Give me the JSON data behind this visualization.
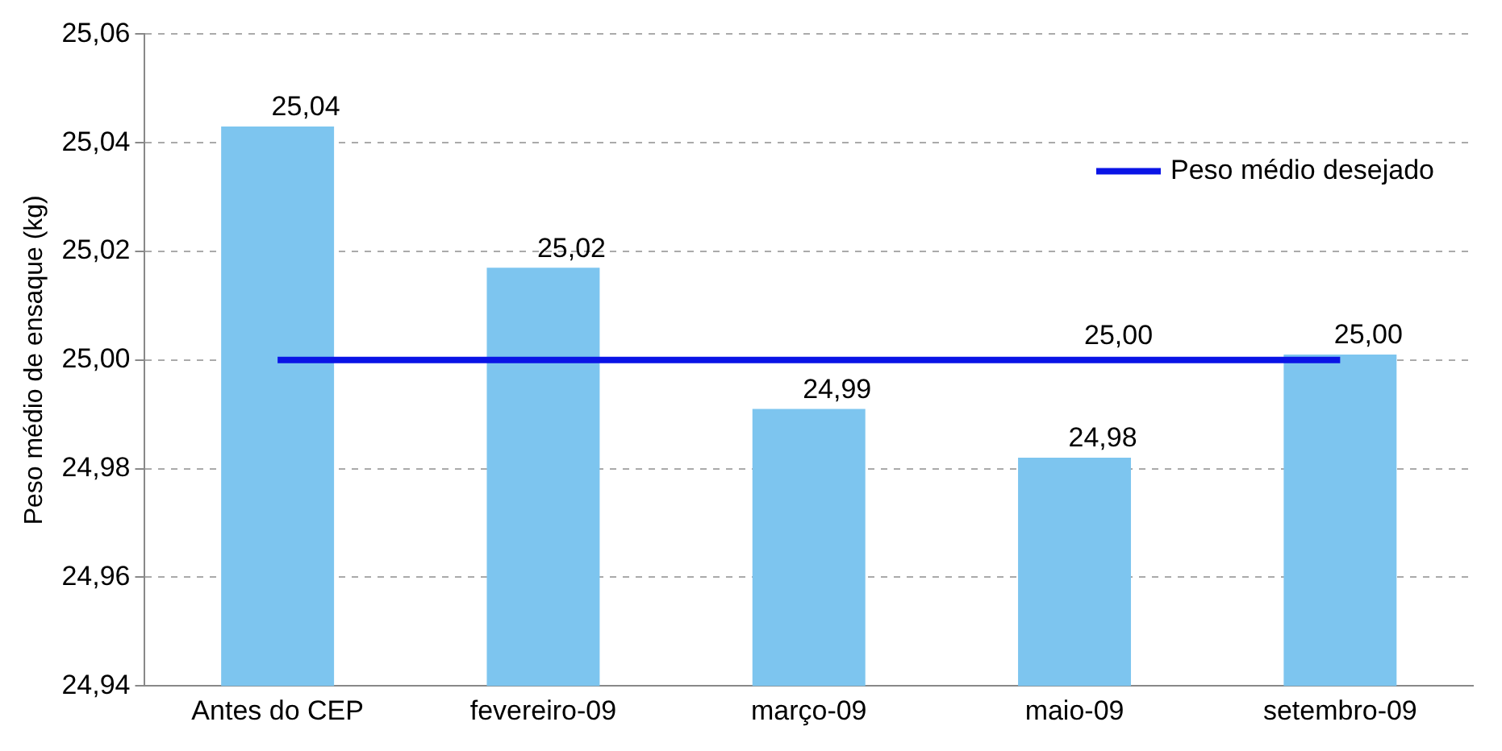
{
  "chart_data": {
    "type": "bar",
    "ylabel": "Peso médio de ensaque (kg)",
    "categories": [
      "Antes do CEP",
      "fevereiro-09",
      "março-09",
      "maio-09",
      "setembro-09"
    ],
    "series": [
      {
        "color": "#7dc5ef",
        "values": [
          25.043,
          25.017,
          24.991,
          24.982,
          25.001
        ],
        "value_labels": [
          "25,04",
          "25,02",
          "24,99",
          "24,98",
          "25,00"
        ]
      },
      {
        "type": "line",
        "name": "Peso médio desejado",
        "color": "#0a14e6",
        "values": [
          25.0,
          25.0,
          25.0,
          25.0,
          25.0
        ],
        "value_labels": [
          null,
          null,
          null,
          "25,00",
          null
        ]
      }
    ],
    "ylim": [
      24.94,
      25.06
    ],
    "yticks": [
      {
        "value": 24.94,
        "label": "24,94"
      },
      {
        "value": 24.96,
        "label": "24,96"
      },
      {
        "value": 24.98,
        "label": "24,98"
      },
      {
        "value": 25.0,
        "label": "25,00"
      },
      {
        "value": 25.02,
        "label": "25,02"
      },
      {
        "value": 25.04,
        "label": "25,04"
      },
      {
        "value": 25.06,
        "label": "25,06"
      }
    ],
    "grid": "y",
    "legend": "top right",
    "marker": "none"
  }
}
